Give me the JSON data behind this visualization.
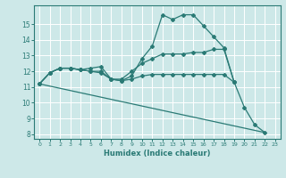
{
  "xlabel": "Humidex (Indice chaleur)",
  "xlim": [
    -0.5,
    23.5
  ],
  "ylim": [
    7.7,
    16.2
  ],
  "yticks": [
    8,
    9,
    10,
    11,
    12,
    13,
    14,
    15
  ],
  "xticks": [
    0,
    1,
    2,
    3,
    4,
    5,
    6,
    7,
    8,
    9,
    10,
    11,
    12,
    13,
    14,
    15,
    16,
    17,
    18,
    19,
    20,
    21,
    22,
    23
  ],
  "bg_color": "#cde8e8",
  "grid_color": "#b0d8d8",
  "line_color": "#2a7a75",
  "line1": {
    "x": [
      0,
      1,
      2,
      3,
      4,
      5,
      6,
      7,
      8,
      9,
      10,
      11,
      12,
      13,
      14,
      15,
      16,
      17,
      18,
      19,
      20,
      21,
      22
    ],
    "y": [
      11.2,
      11.9,
      12.2,
      12.2,
      12.1,
      12.0,
      11.9,
      11.5,
      11.4,
      11.7,
      12.8,
      13.6,
      15.6,
      15.3,
      15.6,
      15.6,
      14.9,
      14.2,
      13.5,
      11.3,
      9.7,
      8.6,
      8.1
    ]
  },
  "line2": {
    "x": [
      0,
      1,
      2,
      3,
      4,
      5,
      6,
      7,
      8,
      9,
      10,
      11,
      12,
      13,
      14,
      15,
      16,
      17,
      18,
      19
    ],
    "y": [
      11.2,
      11.9,
      12.2,
      12.2,
      12.1,
      12.2,
      12.3,
      11.5,
      11.5,
      12.0,
      12.5,
      12.8,
      13.1,
      13.1,
      13.1,
      13.2,
      13.2,
      13.4,
      13.4,
      11.3
    ]
  },
  "line3": {
    "x": [
      0,
      1,
      2,
      3,
      4,
      5,
      6,
      7,
      8,
      9,
      10,
      11,
      12,
      13,
      14,
      15,
      16,
      17,
      18,
      19
    ],
    "y": [
      11.2,
      11.9,
      12.2,
      12.2,
      12.1,
      12.0,
      12.0,
      11.5,
      11.4,
      11.5,
      11.7,
      11.8,
      11.8,
      11.8,
      11.8,
      11.8,
      11.8,
      11.8,
      11.8,
      11.3
    ]
  },
  "line4": {
    "x": [
      0,
      22
    ],
    "y": [
      11.2,
      8.1
    ]
  }
}
